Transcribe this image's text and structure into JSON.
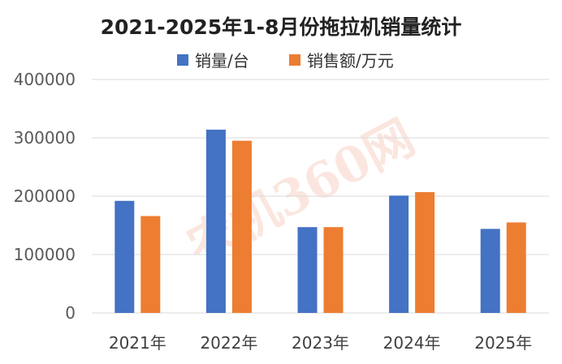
{
  "chart_data": {
    "type": "bar",
    "title": "2021-2025年1-8月份拖拉机销量统计",
    "categories": [
      "2021年",
      "2022年",
      "2023年",
      "2024年",
      "2025年"
    ],
    "series": [
      {
        "name": "销量/台",
        "color": "#4472c4",
        "values": [
          192000,
          314000,
          147000,
          201000,
          144000
        ]
      },
      {
        "name": "销售额/万元",
        "color": "#ed7d31",
        "values": [
          166000,
          295000,
          147000,
          207000,
          155000
        ]
      }
    ],
    "y_ticks": [
      "0",
      "100000",
      "200000",
      "300000",
      "400000"
    ],
    "ylim": [
      0,
      400000
    ],
    "grid": true,
    "legend_position": "top-right"
  },
  "watermark": {
    "text": "农机360网"
  }
}
